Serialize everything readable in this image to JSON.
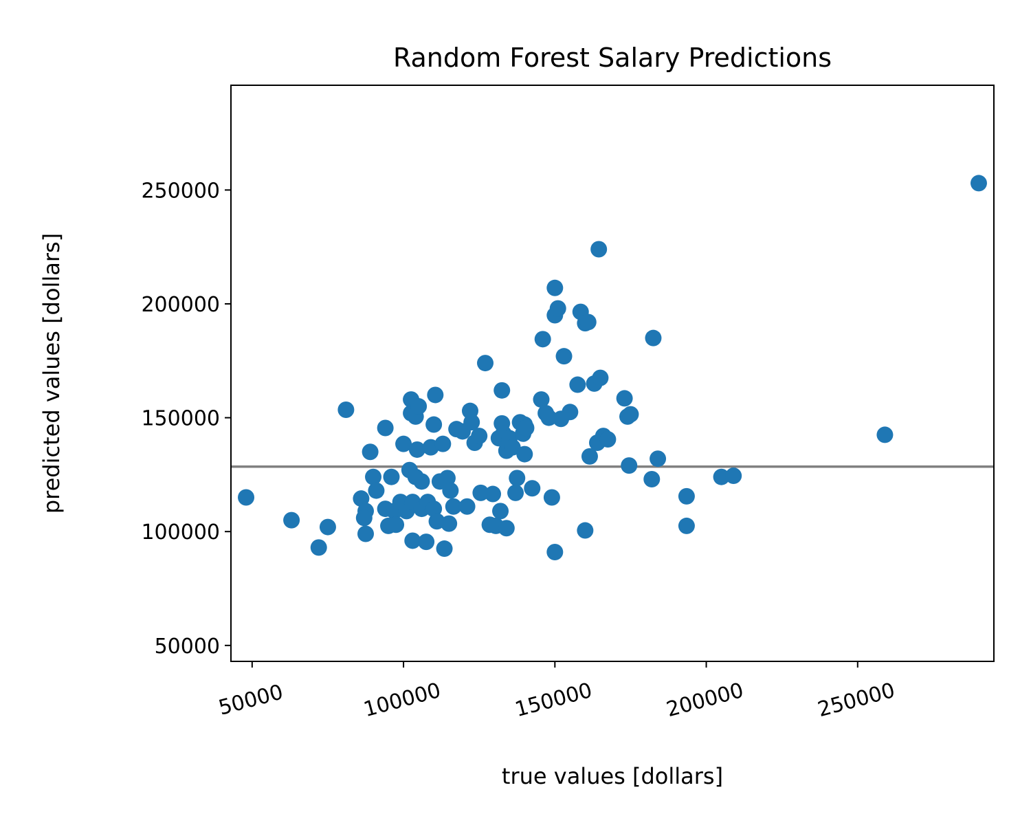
{
  "chart_data": {
    "type": "scatter",
    "title": "Random Forest Salary Predictions",
    "xlabel": "true values [dollars]",
    "ylabel": "predicted values [dollars]",
    "xlim": [
      43000,
      295000
    ],
    "ylim": [
      43000,
      296000
    ],
    "xticks": [
      50000,
      100000,
      150000,
      200000,
      250000
    ],
    "yticks": [
      50000,
      100000,
      150000,
      200000,
      250000
    ],
    "xtick_rotation": -15,
    "grid": false,
    "marker_color": "#1f77b4",
    "reference_line": {
      "y": 128500,
      "color": "#808080"
    },
    "points": [
      [
        48000,
        115000
      ],
      [
        63000,
        105000
      ],
      [
        72000,
        93000
      ],
      [
        75000,
        102000
      ],
      [
        81000,
        153500
      ],
      [
        86000,
        114500
      ],
      [
        87500,
        109000
      ],
      [
        87000,
        106000
      ],
      [
        87500,
        99000
      ],
      [
        89000,
        135000
      ],
      [
        90000,
        124000
      ],
      [
        91000,
        118000
      ],
      [
        94000,
        145500
      ],
      [
        94000,
        110000
      ],
      [
        95000,
        102500
      ],
      [
        96000,
        124000
      ],
      [
        97000,
        109000
      ],
      [
        97500,
        103000
      ],
      [
        99000,
        113000
      ],
      [
        100000,
        138500
      ],
      [
        101000,
        109000
      ],
      [
        102000,
        127000
      ],
      [
        103000,
        113000
      ],
      [
        102500,
        158000
      ],
      [
        102500,
        152000
      ],
      [
        103000,
        96000
      ],
      [
        104000,
        150500
      ],
      [
        104000,
        124000
      ],
      [
        104500,
        136000
      ],
      [
        105000,
        155000
      ],
      [
        106000,
        122000
      ],
      [
        106000,
        110000
      ],
      [
        107500,
        95500
      ],
      [
        108000,
        113000
      ],
      [
        109000,
        137000
      ],
      [
        110000,
        110000
      ],
      [
        110000,
        147000
      ],
      [
        110500,
        160000
      ],
      [
        111000,
        104500
      ],
      [
        112000,
        122000
      ],
      [
        113000,
        138500
      ],
      [
        113500,
        92500
      ],
      [
        114500,
        123500
      ],
      [
        115000,
        103500
      ],
      [
        115500,
        118000
      ],
      [
        116500,
        111000
      ],
      [
        117500,
        145000
      ],
      [
        119500,
        144000
      ],
      [
        121000,
        111000
      ],
      [
        122000,
        153000
      ],
      [
        122500,
        148000
      ],
      [
        123500,
        139000
      ],
      [
        125000,
        142000
      ],
      [
        125500,
        117000
      ],
      [
        127000,
        174000
      ],
      [
        128500,
        103000
      ],
      [
        129500,
        116500
      ],
      [
        130500,
        102500
      ],
      [
        131500,
        141000
      ],
      [
        132000,
        109000
      ],
      [
        132500,
        162000
      ],
      [
        132500,
        147500
      ],
      [
        133000,
        143000
      ],
      [
        134000,
        101500
      ],
      [
        134000,
        135500
      ],
      [
        135000,
        141000
      ],
      [
        136000,
        137000
      ],
      [
        137000,
        117000
      ],
      [
        137500,
        123500
      ],
      [
        138500,
        148000
      ],
      [
        139500,
        143000
      ],
      [
        140000,
        147000
      ],
      [
        140000,
        134000
      ],
      [
        140500,
        145500
      ],
      [
        142500,
        119000
      ],
      [
        145500,
        158000
      ],
      [
        146000,
        184500
      ],
      [
        147000,
        152000
      ],
      [
        148000,
        150000
      ],
      [
        149000,
        115000
      ],
      [
        150000,
        91000
      ],
      [
        150000,
        207000
      ],
      [
        150000,
        195000
      ],
      [
        151000,
        198000
      ],
      [
        152000,
        149500
      ],
      [
        153000,
        177000
      ],
      [
        155000,
        152500
      ],
      [
        157500,
        164500
      ],
      [
        158500,
        196500
      ],
      [
        160000,
        100500
      ],
      [
        160000,
        191500
      ],
      [
        161000,
        192000
      ],
      [
        161500,
        133000
      ],
      [
        163000,
        165000
      ],
      [
        164500,
        224000
      ],
      [
        164000,
        139000
      ],
      [
        165000,
        167500
      ],
      [
        166000,
        142000
      ],
      [
        167500,
        140500
      ],
      [
        173000,
        158500
      ],
      [
        174000,
        150500
      ],
      [
        174500,
        129000
      ],
      [
        175000,
        151500
      ],
      [
        182000,
        123000
      ],
      [
        182500,
        185000
      ],
      [
        184000,
        132000
      ],
      [
        193500,
        115500
      ],
      [
        193500,
        102500
      ],
      [
        205000,
        124000
      ],
      [
        209000,
        124500
      ],
      [
        259000,
        142500
      ],
      [
        290000,
        253000
      ]
    ]
  }
}
